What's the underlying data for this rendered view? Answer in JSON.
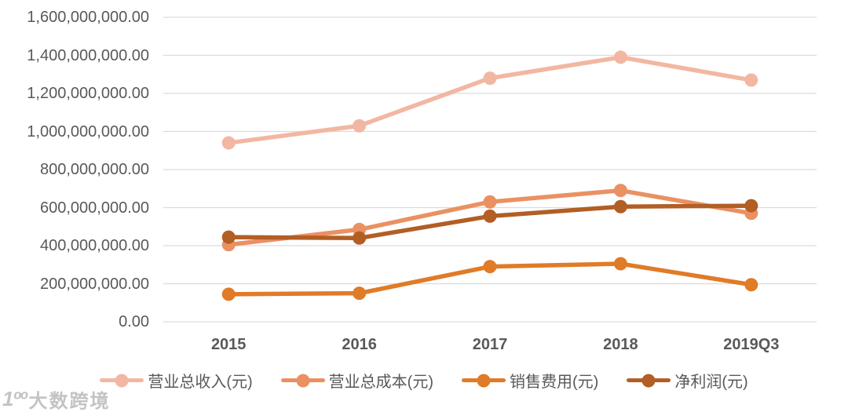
{
  "watermark": {
    "logo": "1ºº",
    "text": "大数跨境"
  },
  "chart_data": {
    "type": "line",
    "title": "",
    "xlabel": "",
    "ylabel": "",
    "categories": [
      "2015",
      "2016",
      "2017",
      "2018",
      "2019Q3"
    ],
    "series": [
      {
        "key": "total-revenue",
        "name": "营业总收入(元)",
        "color": "#f2b7a2",
        "values": [
          940000000,
          1030000000,
          1280000000,
          1390000000,
          1270000000
        ]
      },
      {
        "key": "total-cost",
        "name": "营业总成本(元)",
        "color": "#ea9162",
        "values": [
          405000000,
          485000000,
          630000000,
          690000000,
          570000000
        ]
      },
      {
        "key": "selling-expense",
        "name": "销售费用(元)",
        "color": "#e07b28",
        "values": [
          145000000,
          150000000,
          290000000,
          305000000,
          195000000
        ]
      },
      {
        "key": "net-profit",
        "name": "净利润(元)",
        "color": "#b25e25",
        "values": [
          445000000,
          440000000,
          555000000,
          605000000,
          610000000
        ]
      }
    ],
    "ylim": [
      0,
      1600000000
    ],
    "y_tick_step": 200000000,
    "y_tick_labels": [
      "1,600,000,000.00",
      "1,400,000,000.00",
      "1,200,000,000.00",
      "1,000,000,000.00",
      "800,000,000.00",
      "600,000,000.00",
      "400,000,000.00",
      "200,000,000.00",
      "0.00"
    ],
    "grid": true,
    "legend_position": "bottom",
    "gridline_color": "#dcdcdc",
    "tick_label_color": "#595959"
  }
}
